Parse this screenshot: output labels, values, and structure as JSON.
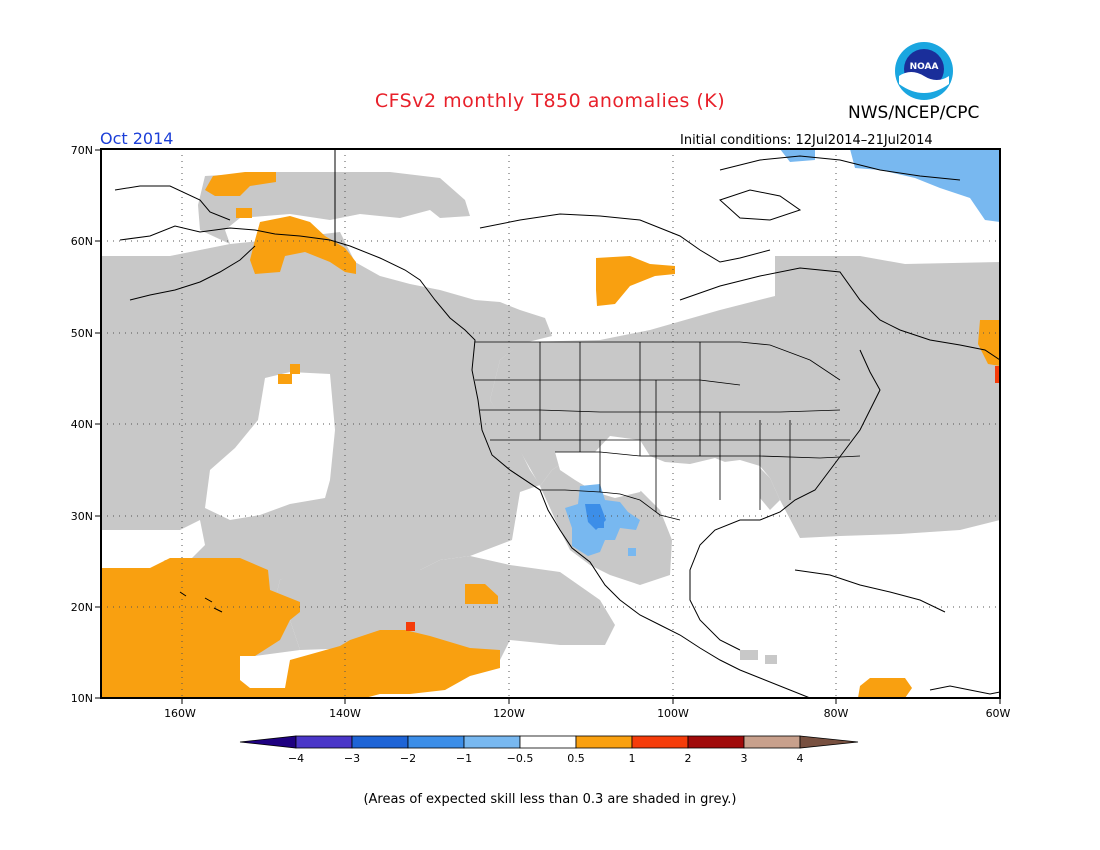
{
  "title": "CFSv2 monthly T850 anomalies (K)",
  "organization": "NWS/NCEP/CPC",
  "logo_text": "NOAA",
  "valid_month": "Oct 2014",
  "initial_conditions": "Initial conditions: 12Jul2014–21Jul2014",
  "footnote": "(Areas of expected skill less than 0.3 are shaded in grey.)",
  "map": {
    "lat_labels": [
      "70N",
      "60N",
      "50N",
      "40N",
      "30N",
      "20N",
      "10N"
    ],
    "lon_labels": [
      "160W",
      "140W",
      "120W",
      "100W",
      "80W",
      "60W"
    ]
  },
  "legend": {
    "tick_labels": [
      "−4",
      "−3",
      "−2",
      "−1",
      "−0.5",
      "0.5",
      "1",
      "2",
      "3",
      "4"
    ],
    "colors": [
      "#1e0080",
      "#4a36c8",
      "#1e64d6",
      "#3c8ee8",
      "#78b8f0",
      "#ffffff",
      "#f9a010",
      "#f53c0a",
      "#a00a0a",
      "#c8a08c",
      "#785040"
    ]
  },
  "colors": {
    "grey_low_skill": "#c8c8c8",
    "orange": "#f9a010",
    "red": "#f53c0a",
    "light_blue": "#78b8f0",
    "blue": "#3c8ee8"
  }
}
